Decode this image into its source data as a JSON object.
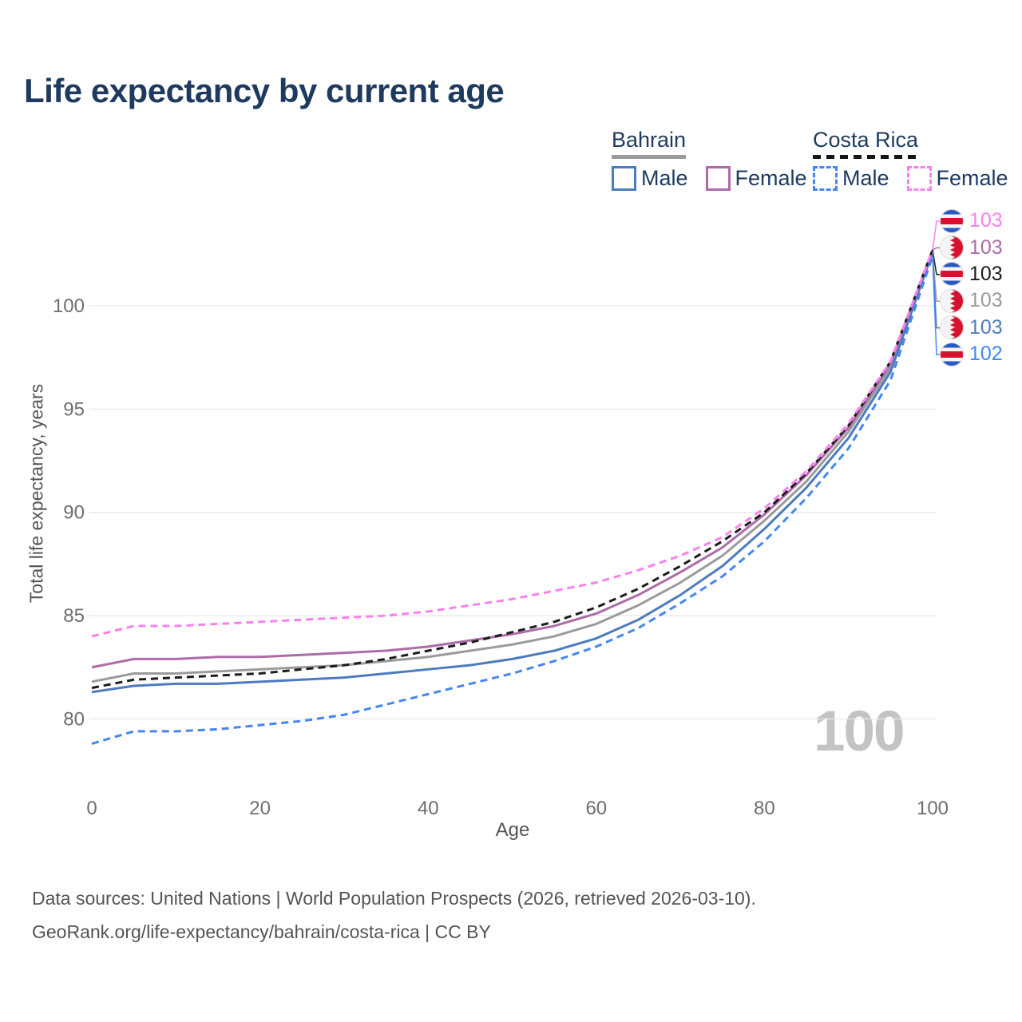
{
  "title": "Life expectancy by current age",
  "legend": {
    "groups": [
      {
        "title": "Bahrain",
        "line_style": "solid",
        "items": [
          {
            "label": "Male",
            "color": "#4d7cbe"
          },
          {
            "label": "Female",
            "color": "#ad6ca8"
          }
        ]
      },
      {
        "title": "Costa Rica",
        "line_style": "dashed",
        "items": [
          {
            "label": "Male",
            "color": "#4486f4"
          },
          {
            "label": "Female",
            "color": "#fb80ee"
          }
        ]
      }
    ]
  },
  "axes": {
    "y_title": "Total life expectancy, years",
    "x_title": "Age",
    "y_ticks": [
      80,
      85,
      90,
      95,
      100
    ],
    "x_ticks": [
      0,
      20,
      40,
      60,
      80,
      100
    ]
  },
  "watermark": "100",
  "end_labels": [
    {
      "value": "103",
      "color": "#fb80ee",
      "flag": "costa-rica",
      "series_id": "cr-female"
    },
    {
      "value": "103",
      "color": "#ad6ca8",
      "flag": "bahrain",
      "series_id": "bh-female"
    },
    {
      "value": "103",
      "color": "#1c1c1c",
      "flag": "costa-rica",
      "series_id": "cr-all"
    },
    {
      "value": "103",
      "color": "#9b9b9b",
      "flag": "bahrain",
      "series_id": "bh-all"
    },
    {
      "value": "103",
      "color": "#4d7cbe",
      "flag": "bahrain",
      "series_id": "bh-male"
    },
    {
      "value": "102",
      "color": "#4486f4",
      "flag": "costa-rica",
      "series_id": "cr-male"
    }
  ],
  "footer": {
    "line1": "Data sources: United Nations | World Population Prospects (2026, retrieved 2026-03-10).",
    "line2": "GeoRank.org/life-expectancy/bahrain/costa-rica | CC BY"
  },
  "chart_data": {
    "type": "line",
    "title": "Life expectancy by current age",
    "xlabel": "Age",
    "ylabel": "Total life expectancy, years",
    "xlim": [
      0,
      100
    ],
    "ylim_shown": [
      80,
      100
    ],
    "grid": "horizontal",
    "legend_position": "top-right",
    "x": [
      0,
      5,
      10,
      15,
      20,
      25,
      30,
      35,
      40,
      45,
      50,
      55,
      60,
      65,
      70,
      75,
      80,
      85,
      90,
      95,
      100
    ],
    "series": [
      {
        "id": "bh-all",
        "name": "Bahrain (all)",
        "country": "Bahrain",
        "sex": "all",
        "color": "#9b9b9b",
        "dash": false,
        "values": [
          81.8,
          82.2,
          82.2,
          82.3,
          82.4,
          82.5,
          82.6,
          82.8,
          83.0,
          83.3,
          83.6,
          84.0,
          84.6,
          85.5,
          86.6,
          87.9,
          89.6,
          91.5,
          93.9,
          97.0,
          102.6
        ]
      },
      {
        "id": "bh-male",
        "name": "Bahrain Male",
        "country": "Bahrain",
        "sex": "male",
        "color": "#4d7cbe",
        "dash": false,
        "values": [
          81.3,
          81.6,
          81.7,
          81.7,
          81.8,
          81.9,
          82.0,
          82.2,
          82.4,
          82.6,
          82.9,
          83.3,
          83.9,
          84.8,
          86.0,
          87.4,
          89.2,
          91.2,
          93.6,
          96.8,
          102.6
        ]
      },
      {
        "id": "bh-female",
        "name": "Bahrain Female",
        "country": "Bahrain",
        "sex": "female",
        "color": "#ad6ca8",
        "dash": false,
        "values": [
          82.5,
          82.9,
          82.9,
          83.0,
          83.0,
          83.1,
          83.2,
          83.3,
          83.5,
          83.8,
          84.1,
          84.5,
          85.1,
          86.0,
          87.1,
          88.3,
          89.9,
          91.8,
          94.1,
          97.2,
          102.7
        ]
      },
      {
        "id": "cr-all",
        "name": "Costa Rica (all)",
        "country": "Costa Rica",
        "sex": "all",
        "color": "#1c1c1c",
        "dash": true,
        "values": [
          81.5,
          81.9,
          82.0,
          82.1,
          82.2,
          82.4,
          82.6,
          82.9,
          83.3,
          83.7,
          84.2,
          84.7,
          85.4,
          86.3,
          87.4,
          88.6,
          90.0,
          91.9,
          94.2,
          97.3,
          102.7
        ]
      },
      {
        "id": "cr-male",
        "name": "Costa Rica Male",
        "country": "Costa Rica",
        "sex": "male",
        "color": "#4486f4",
        "dash": true,
        "values": [
          78.8,
          79.4,
          79.4,
          79.5,
          79.7,
          79.9,
          80.2,
          80.7,
          81.2,
          81.7,
          82.2,
          82.8,
          83.5,
          84.4,
          85.6,
          86.9,
          88.6,
          90.7,
          93.1,
          96.4,
          102.4
        ]
      },
      {
        "id": "cr-female",
        "name": "Costa Rica Female",
        "country": "Costa Rica",
        "sex": "female",
        "color": "#fb80ee",
        "dash": true,
        "values": [
          84.0,
          84.5,
          84.5,
          84.6,
          84.7,
          84.8,
          84.9,
          85.0,
          85.2,
          85.5,
          85.8,
          86.2,
          86.6,
          87.2,
          87.9,
          88.8,
          90.2,
          92.0,
          94.3,
          97.3,
          102.7
        ]
      }
    ]
  }
}
